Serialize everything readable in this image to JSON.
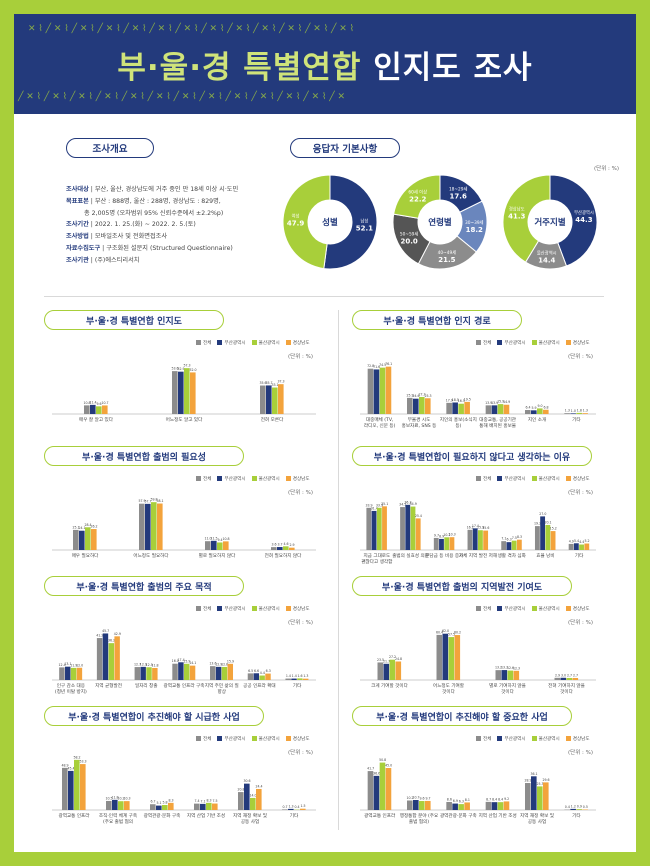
{
  "title": {
    "part1": "부·울·경 특별연합",
    "part2": "인지도 조사"
  },
  "survey": {
    "heading": "조사개요",
    "rows": [
      {
        "key": "조사대상",
        "value": "부산, 울산, 경상남도에 거주 중인 만 18세 이상 시·도민"
      },
      {
        "key": "목표표본",
        "value": "부산 : 888명, 울산 : 288명, 경상남도 : 829명,"
      },
      {
        "key": "",
        "value": "총 2,005명 (오차범위 95% 신뢰수준에서 ±2.2%p)"
      },
      {
        "key": "조사기간",
        "value": "2022. 1. 25.(화) ~ 2022. 2. 5.(토)"
      },
      {
        "key": "조사방법",
        "value": "모바일조사 및 전화면접조사"
      },
      {
        "key": "자료수집도구",
        "value": "구조화된 설문지 (Structured Questionnaire)"
      },
      {
        "key": "조사기관",
        "value": "(주)에스티리서치"
      }
    ]
  },
  "respondents": {
    "heading": "응답자 기본사항",
    "unit": "(단위 : %)",
    "donuts": [
      {
        "center": "성별",
        "slices": [
          {
            "label": "남성",
            "value": "52.1"
          },
          {
            "label": "여성",
            "value": "47.9"
          }
        ]
      },
      {
        "center": "연령별",
        "slices": [
          {
            "label": "18~29세",
            "value": "17.6"
          },
          {
            "label": "30~39세",
            "value": "18.2"
          },
          {
            "label": "40~49세",
            "value": "21.5"
          },
          {
            "label": "50~59세",
            "value": "20.0"
          },
          {
            "label": "60세 이상",
            "value": "22.2"
          }
        ]
      },
      {
        "center": "거주지별",
        "slices": [
          {
            "label": "부산광역시",
            "value": "44.3"
          },
          {
            "label": "울산광역시",
            "value": "14.4"
          },
          {
            "label": "경상남도",
            "value": "41.3"
          }
        ]
      }
    ]
  },
  "legend": {
    "items": [
      "전체",
      "부산광역시",
      "울산광역시",
      "경상남도"
    ]
  },
  "unit_label": "(단위 : %)",
  "colors": {
    "navy": "#233a7c",
    "green": "#a8cf3a",
    "gray": "#8c8c8c",
    "orange": "#f3a33c",
    "border": "#a8cf3a"
  },
  "chart_data": [
    {
      "id": "c1",
      "type": "bar",
      "title": "부·울·경 특별연합 인지도",
      "categories": [
        "매우 잘 알고 있다",
        "어느정도 알고 있다",
        "전혀 모른다"
      ],
      "series": [
        {
          "name": "전체",
          "values": [
            10.8,
            53.6,
            35.6
          ]
        },
        {
          "name": "부산광역시",
          "values": [
            11.4,
            52.9,
            35.7
          ]
        },
        {
          "name": "울산광역시",
          "values": [
            9.6,
            57.3,
            33.1
          ]
        },
        {
          "name": "경상남도",
          "values": [
            10.7,
            52.0,
            37.3
          ]
        }
      ],
      "ylim": [
        0,
        70
      ]
    },
    {
      "id": "c2",
      "type": "bar",
      "title": "부·울·경 특별연합 인지 경로",
      "categories": [
        "대중매체 (TV, 라디오, 신문 등)",
        "부울경 시도 홍보자료, SNS 등",
        "지인의 홍보(소식지 등)",
        "대중교통, 공공기관 통해 배치된 홍보물",
        "지인 소개",
        "기타"
      ],
      "series": [
        {
          "name": "전체",
          "values": [
            72.8,
            25.9,
            17.9,
            13.9,
            6.4,
            1.3
          ]
        },
        {
          "name": "부산광역시",
          "values": [
            71.6,
            24.6,
            18.5,
            13.9,
            5.9,
            1.0
          ]
        },
        {
          "name": "울산광역시",
          "values": [
            74.5,
            27.3,
            16.5,
            15.9,
            9.0,
            1.8
          ]
        },
        {
          "name": "경상남도",
          "values": [
            76.1,
            25.3,
            19.5,
            14.9,
            6.8,
            1.3
          ]
        }
      ],
      "ylim": [
        0,
        90
      ]
    },
    {
      "id": "c3",
      "type": "bar",
      "title": "부·울·경 특별연합 출범의 필요성",
      "categories": [
        "매우 필요하다",
        "어느정도 필요하다",
        "별로 필요하지 않다",
        "전혀 필요하지 않다"
      ],
      "series": [
        {
          "name": "전체",
          "values": [
            25.1,
            57.9,
            11.0,
            3.6
          ]
        },
        {
          "name": "부산광역시",
          "values": [
            24.1,
            57.7,
            11.5,
            3.7
          ]
        },
        {
          "name": "울산광역시",
          "values": [
            28.4,
            59.8,
            9.4,
            4.6
          ]
        },
        {
          "name": "경상남도",
          "values": [
            26.2,
            58.1,
            10.8,
            2.9
          ]
        }
      ],
      "ylim": [
        0,
        70
      ]
    },
    {
      "id": "c4",
      "type": "bar",
      "title": "부·울·경 특별연합이 필요하지 않다고 생각하는 이유",
      "categories": [
        "지금 그대로도 괜찮다고 생각함",
        "출범의 실효성 의문",
        "분담금 등 비용 증가",
        "자체 지역 발전 저해",
        "생활 격차 심화",
        "효율 낭비",
        "기타"
      ],
      "series": [
        {
          "name": "전체",
          "values": [
            33.9,
            34.5,
            9.7,
            16.2,
            7.1,
            19.2,
            4.9
          ]
        },
        {
          "name": "부산광역시",
          "values": [
            31.4,
            36.3,
            8.9,
            17.4,
            6.3,
            27.0,
            5.4
          ]
        },
        {
          "name": "울산광역시",
          "values": [
            33.9,
            34.9,
            10.2,
            15.9,
            7.5,
            20.1,
            4.4
          ]
        },
        {
          "name": "경상남도",
          "values": [
            35.1,
            25.4,
            10.3,
            15.6,
            8.3,
            15.2,
            5.2
          ]
        }
      ],
      "ylim": [
        0,
        45
      ]
    },
    {
      "id": "c5",
      "type": "bar",
      "title": "부·울·경 특별연합 출범의 주요 목적",
      "categories": [
        "인구 감소 대응 (청년 이탈 방지)",
        "지역 균형발전",
        "일자리 창출",
        "광역교통 인프라 구축",
        "지역 주민 삶의 질 향상",
        "공공 인프라 확대",
        "기타"
      ],
      "series": [
        {
          "name": "전체",
          "values": [
            12.4,
            41.2,
            12.7,
            16.0,
            13.6,
            6.5,
            1.4
          ]
        },
        {
          "name": "부산광역시",
          "values": [
            13.1,
            45.7,
            12.9,
            17.4,
            12.9,
            6.6,
            1.4
          ]
        },
        {
          "name": "울산광역시",
          "values": [
            11.9,
            36.2,
            12.5,
            15.9,
            12.8,
            4.4,
            1.6
          ]
        },
        {
          "name": "경상남도",
          "values": [
            12.0,
            42.9,
            11.8,
            14.1,
            15.9,
            6.3,
            1.3
          ]
        }
      ],
      "ylim": [
        0,
        55
      ]
    },
    {
      "id": "c6",
      "type": "bar",
      "title": "부·울·경 특별연합 출범의 지역발전 기여도",
      "categories": [
        "크게 기여할 것이다",
        "어느정도 기여할 것이다",
        "별로 기여하지 않을 것이다",
        "전혀 기여하지 않을 것이다"
      ],
      "series": [
        {
          "name": "전체",
          "values": [
            23.5,
            60.4,
            13.2,
            2.9
          ]
        },
        {
          "name": "부산광역시",
          "values": [
            21.7,
            62.0,
            13.3,
            3.0
          ]
        },
        {
          "name": "울산광역시",
          "values": [
            27.2,
            57.5,
            12.6,
            2.7
          ]
        },
        {
          "name": "경상남도",
          "values": [
            24.8,
            60.2,
            12.3,
            2.7
          ]
        }
      ],
      "ylim": [
        0,
        75
      ]
    },
    {
      "id": "c7",
      "type": "bar",
      "title": "부·울·경 특별연합이 추진해야 할 시급한 사업",
      "categories": [
        "광역교통 인프라",
        "조직·인력 체계 구축 (주요 출범 협의 등)",
        "광역관광·문화 구축",
        "지역 산업 기반 조성",
        "지역 재정 확보 및 공동 사업",
        "기타"
      ],
      "series": [
        {
          "name": "전체",
          "values": [
            48.9,
            10.5,
            6.7,
            7.4,
            20.8,
            0.7
          ]
        },
        {
          "name": "부산광역시",
          "values": [
            45.4,
            11.8,
            5.1,
            7.1,
            30.6,
            1.3
          ]
        },
        {
          "name": "울산광역시",
          "values": [
            58.2,
            10.2,
            5.8,
            8.3,
            14.0,
            0.4
          ]
        },
        {
          "name": "경상남도",
          "values": [
            53.3,
            10.3,
            8.3,
            7.5,
            24.4,
            1.5
          ]
        }
      ],
      "ylim": [
        0,
        65
      ]
    },
    {
      "id": "c8",
      "type": "bar",
      "title": "부·울·경 특별연합이 추진해야 할 중요한 사업",
      "categories": [
        "광역교통 인프라",
        "행정통합 분야 (주요 출범 협의)",
        "광역관광·문화 구축",
        "지역 산업 기반 조성",
        "지역 재정 확보 및 공동 사업",
        "기타"
      ],
      "series": [
        {
          "name": "전체",
          "values": [
            41.7,
            10.2,
            8.6,
            8.7,
            28.9,
            0.4
          ]
        },
        {
          "name": "부산광역시",
          "values": [
            36.6,
            10.7,
            6.9,
            8.4,
            36.1,
            1.2
          ]
        },
        {
          "name": "울산광역시",
          "values": [
            50.8,
            9.6,
            6.3,
            8.4,
            25.3,
            0.9
          ]
        },
        {
          "name": "경상남도",
          "values": [
            45.0,
            9.7,
            8.1,
            9.2,
            29.6,
            0.5
          ]
        }
      ],
      "ylim": [
        0,
        60
      ]
    }
  ]
}
